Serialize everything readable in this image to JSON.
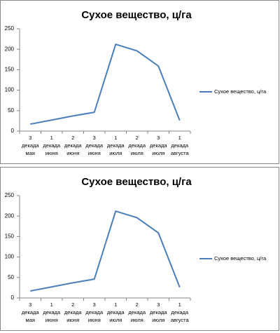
{
  "chart_data": [
    {
      "type": "line",
      "title": "Сухое вещество, ц/га",
      "categories": [
        "3 декада мая",
        "1 декада июня",
        "2 декада июня",
        "3 декада июня",
        "1 декада июля",
        "2 декада июля",
        "3 декада июля",
        "1 декада августа"
      ],
      "series": [
        {
          "name": "Сухое вещество, ц/га",
          "color": "#4a7ebb",
          "values": [
            17,
            27,
            37,
            46,
            212,
            196,
            159,
            26
          ]
        }
      ],
      "ylim": [
        0,
        250
      ],
      "yticks": [
        0,
        50,
        100,
        150,
        200,
        250
      ],
      "grid": false,
      "legend": "right"
    },
    {
      "type": "line",
      "title": "Сухое вещество, ц/га",
      "categories": [
        "3 декада мая",
        "1 декада июня",
        "2 декада июня",
        "3 декада июня",
        "1 декада июля",
        "2 декада июля",
        "3 декада июля",
        "1 декада августа"
      ],
      "series": [
        {
          "name": "Сухое вещество, ц/га",
          "color": "#4a7ebb",
          "values": [
            17,
            27,
            37,
            46,
            212,
            196,
            159,
            26
          ]
        }
      ],
      "ylim": [
        0,
        250
      ],
      "yticks": [
        0,
        50,
        100,
        150,
        200,
        250
      ],
      "grid": false,
      "legend": "right"
    }
  ]
}
